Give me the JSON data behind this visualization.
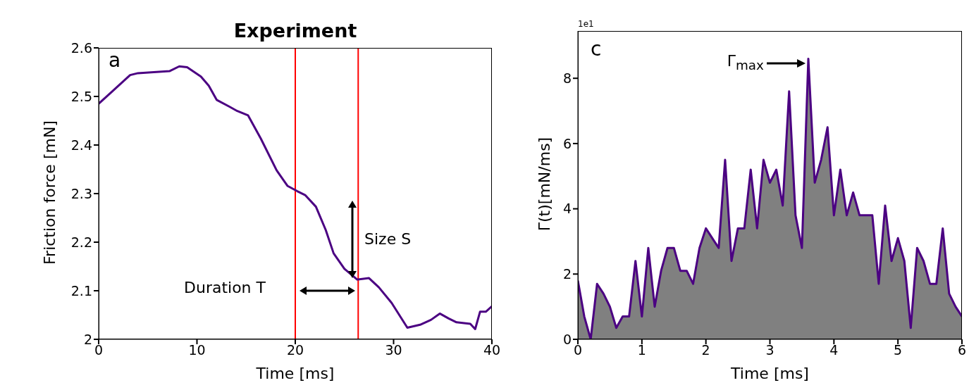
{
  "chart_data": [
    {
      "type": "line",
      "title": "Experiment",
      "xlabel": "Time [ms]",
      "ylabel": "Friction force [mN]",
      "x": [
        0,
        1.3,
        3.2,
        4.0,
        7.2,
        8.2,
        9.0,
        10.4,
        11.2,
        12.0,
        13.3,
        14.1,
        15.2,
        16.5,
        18.1,
        19.2,
        20.2,
        21.0,
        22.1,
        23.1,
        23.9,
        25.0,
        26.3,
        27.5,
        28.5,
        29.8,
        31.4,
        32.7,
        33.8,
        34.7,
        35.6,
        36.4,
        37.8,
        38.3,
        38.8,
        39.4,
        40
      ],
      "series": [
        {
          "color": "#4b0082",
          "values": [
            2.485,
            2.509,
            2.544,
            2.548,
            2.552,
            2.562,
            2.56,
            2.541,
            2.522,
            2.493,
            2.479,
            2.47,
            2.461,
            2.413,
            2.348,
            2.316,
            2.305,
            2.297,
            2.273,
            2.225,
            2.177,
            2.145,
            2.123,
            2.126,
            2.107,
            2.075,
            2.024,
            2.03,
            2.04,
            2.053,
            2.043,
            2.035,
            2.032,
            2.021,
            2.057,
            2.057,
            2.068
          ]
        }
      ],
      "xlim": [
        0,
        40
      ],
      "xticks": [
        0,
        10,
        20,
        30,
        40
      ],
      "ylim": [
        2.0,
        2.6
      ],
      "yticks": [
        2.0,
        2.1,
        2.2,
        2.3,
        2.4,
        2.5,
        2.6
      ],
      "ref_lines": [
        {
          "axis": "x",
          "value": 20,
          "color": "#ff0000"
        },
        {
          "axis": "x",
          "value": 26.4,
          "color": "#ff0000"
        }
      ],
      "annotations": [
        "a",
        "Duration T",
        "Size S"
      ]
    },
    {
      "type": "area",
      "xlabel": "Time [ms]",
      "ylabel": "Γ(t)[mN/ms]",
      "x": [
        0,
        0.1,
        0.2,
        0.3,
        0.4,
        0.5,
        0.6,
        0.7,
        0.8,
        0.9,
        1.0,
        1.1,
        1.2,
        1.3,
        1.4,
        1.5,
        1.6,
        1.7,
        1.8,
        1.9,
        2.0,
        2.1,
        2.2,
        2.3,
        2.4,
        2.5,
        2.6,
        2.7,
        2.8,
        2.9,
        3.0,
        3.1,
        3.2,
        3.3,
        3.4,
        3.5,
        3.6,
        3.7,
        3.8,
        3.9,
        4.0,
        4.1,
        4.2,
        4.3,
        4.4,
        4.5,
        4.6,
        4.7,
        4.8,
        4.9,
        5.0,
        5.1,
        5.2,
        5.3,
        5.4,
        5.5,
        5.6,
        5.7,
        5.8,
        5.9,
        6.0
      ],
      "series": [
        {
          "color": "#4b0082",
          "values": [
            1.8,
            0.7,
            0,
            1.7,
            1.4,
            1.0,
            0.35,
            0.7,
            0.7,
            2.4,
            0.7,
            2.8,
            1.0,
            2.1,
            2.8,
            2.8,
            2.1,
            2.1,
            1.7,
            2.8,
            3.4,
            3.1,
            2.8,
            5.5,
            2.4,
            3.4,
            3.4,
            5.2,
            3.4,
            5.5,
            4.8,
            5.2,
            4.1,
            7.6,
            3.8,
            2.8,
            8.6,
            4.8,
            5.5,
            6.5,
            3.8,
            5.2,
            3.8,
            4.5,
            3.8,
            3.8,
            3.8,
            1.7,
            4.1,
            2.4,
            3.1,
            2.4,
            0.35,
            2.8,
            2.4,
            1.7,
            1.7,
            3.4,
            1.4,
            1.0,
            0.7
          ]
        }
      ],
      "xlim": [
        0,
        6
      ],
      "xticks": [
        0,
        1,
        2,
        3,
        4,
        5,
        6
      ],
      "ylim": [
        0,
        9.45
      ],
      "yticks": [
        0,
        2,
        4,
        6,
        8
      ],
      "annotations": [
        "1e1",
        "c",
        {
          "text": "Γ$_{max}$",
          "x": 3.6,
          "y": 8.6
        }
      ]
    }
  ]
}
